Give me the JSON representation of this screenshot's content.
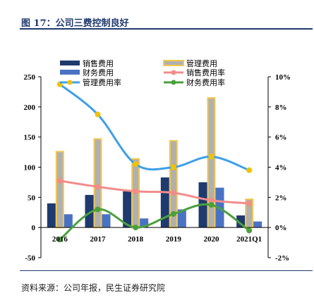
{
  "header": {
    "figure_title": "图 17：公司三费控制良好"
  },
  "footer": {
    "source": "资料来源：公司年报，民生证券研究院"
  },
  "colors": {
    "title": "#1f3a6e",
    "sales_bar": "#1f3a6e",
    "mgmt_bar_fill": "#b0b0b0",
    "mgmt_bar_border": "#f2c94c",
    "fin_bar": "#4a72c4",
    "sales_rate": "#f28c8c",
    "mgmt_rate": "#3ea0e8",
    "mgmt_rate_marker": "#f2c200",
    "fin_rate": "#4aa03c"
  },
  "chart_data": {
    "type": "bar",
    "categories": [
      "2016",
      "2017",
      "2018",
      "2019",
      "2020",
      "2021Q1"
    ],
    "series": [
      {
        "name": "销售费用",
        "type": "bar",
        "axis": "left",
        "values": [
          40,
          54,
          60,
          83,
          75,
          20
        ]
      },
      {
        "name": "管理费用",
        "type": "bar",
        "axis": "left",
        "values": [
          127,
          148,
          115,
          145,
          216,
          48
        ]
      },
      {
        "name": "财务费用",
        "type": "bar",
        "axis": "left",
        "values": [
          22,
          22,
          15,
          30,
          66,
          10
        ]
      },
      {
        "name": "销售费用率",
        "type": "line",
        "axis": "right",
        "values": [
          3.1,
          2.7,
          2.4,
          2.3,
          1.8,
          1.6
        ]
      },
      {
        "name": "管理费用率",
        "type": "line",
        "axis": "right",
        "values": [
          9.5,
          7.5,
          4.2,
          4.0,
          4.7,
          3.8
        ]
      },
      {
        "name": "财务费用率",
        "type": "line",
        "axis": "right",
        "values": [
          -0.8,
          1.2,
          0.0,
          0.9,
          1.5,
          -0.2
        ]
      }
    ],
    "left_axis": {
      "ylim": [
        -50,
        250
      ],
      "ticks": [
        -50,
        0,
        50,
        100,
        150,
        200,
        250
      ]
    },
    "right_axis": {
      "ylim": [
        -2,
        10
      ],
      "ticks": [
        "-2%",
        "0%",
        "2%",
        "4%",
        "6%",
        "8%",
        "10%"
      ]
    },
    "legend": {
      "placement": "top-center",
      "columns": 2
    },
    "grid": false
  }
}
